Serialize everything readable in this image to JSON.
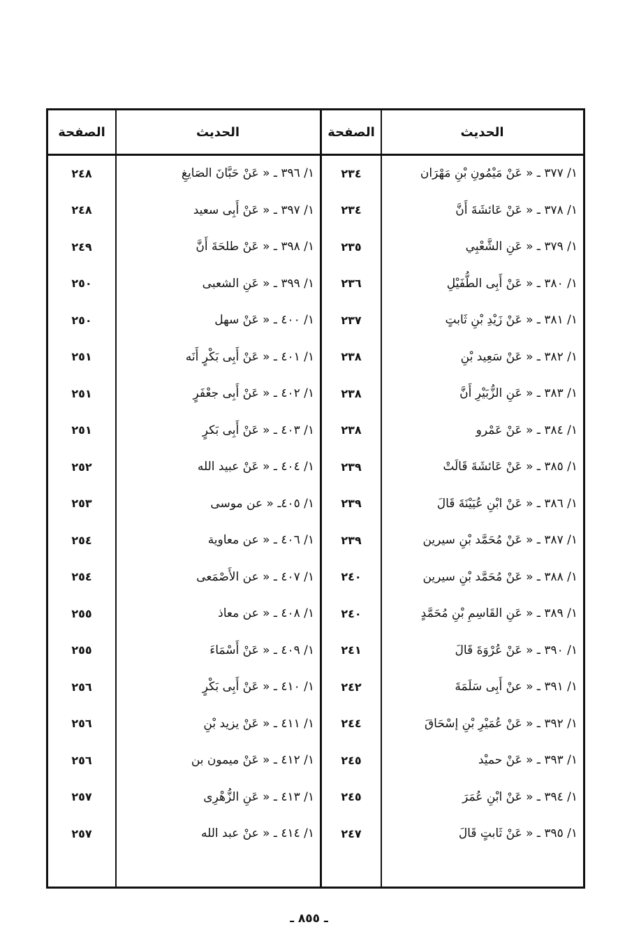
{
  "header": {
    "hadith": "الحديث",
    "page": "الصفحة"
  },
  "right_column": [
    {
      "hadith": "١/ ٣٧٧ ـ « عَنْ مَيْمُونِ بْنِ مَهْرَان",
      "page": "٢٣٤"
    },
    {
      "hadith": "١/ ٣٧٨ ـ « عَنْ عَائشَةَ أَنَّ",
      "page": "٢٣٤"
    },
    {
      "hadith": "١/ ٣٧٩ ـ « عَنِ الشَّعْبِي",
      "page": "٢٣٥"
    },
    {
      "hadith": "١/ ٣٨٠ ـ « عَنْ أَبِى الطُّفَيْلِ",
      "page": "٢٣٦"
    },
    {
      "hadith": "١/ ٣٨١ ـ « عَنْ زَيْدِ بْنِ ثَابتٍ",
      "page": "٢٣٧"
    },
    {
      "hadith": "١/ ٣٨٢ ـ « عَنْ سَعِيد بْنِ",
      "page": "٢٣٨"
    },
    {
      "hadith": "١/ ٣٨٣ ـ « عَنِ الزُّبَيْرِ أَنَّ",
      "page": "٢٣٨"
    },
    {
      "hadith": "١/ ٣٨٤ ـ « عَنْ عَمْرو",
      "page": "٢٣٨"
    },
    {
      "hadith": "١/ ٣٨٥ ـ « عَنْ عَائشَةَ قَالَتْ",
      "page": "٢٣٩"
    },
    {
      "hadith": "١/ ٣٨٦ ـ « عَنْ ابْنِ عُيَيْنَةَ قَالَ",
      "page": "٢٣٩"
    },
    {
      "hadith": "١/ ٣٨٧ ـ « عَنْ مُحَمَّد بْنِ سيرين",
      "page": "٢٣٩"
    },
    {
      "hadith": "١/ ٣٨٨ ـ « عَنْ مُحَمَّد بْنِ سيرين",
      "page": "٢٤٠"
    },
    {
      "hadith": "١/ ٣٨٩ ـ « عَنِ القَاسِمِ بْنِ مُحَمَّدٍ",
      "page": "٢٤٠"
    },
    {
      "hadith": "١/ ٣٩٠ ـ « عَنْ عُرْوَةَ قَالَ",
      "page": "٢٤١"
    },
    {
      "hadith": "١/ ٣٩١ ـ « عنْ أَبِى سَلَمَةَ",
      "page": "٢٤٢"
    },
    {
      "hadith": "١/ ٣٩٢ ـ « عَنْ عُمَيْرِ بْنِ إسْحَاقَ",
      "page": "٢٤٤"
    },
    {
      "hadith": "١/ ٣٩٣ ـ « عَنْ حميْد",
      "page": "٢٤٥"
    },
    {
      "hadith": "١/ ٣٩٤ ـ « عَنْ ابْنِ عُمَرَ",
      "page": "٢٤٥"
    },
    {
      "hadith": "١/ ٣٩٥ ـ « عَنْ ثَابتٍ قَالَ",
      "page": "٢٤٧"
    }
  ],
  "left_column": [
    {
      "hadith": "١/ ٣٩٦ ـ « عَنْ حَبَّانَ الصَايغِ",
      "page": "٢٤٨"
    },
    {
      "hadith": "١/ ٣٩٧ ـ « عَنْ أَبِى سعيد",
      "page": "٢٤٨"
    },
    {
      "hadith": "١/ ٣٩٨ ـ « عَنْ طلحَةَ أَنَّ",
      "page": "٢٤٩"
    },
    {
      "hadith": "١/ ٣٩٩ ـ « عَنِ الشعبى",
      "page": "٢٥٠"
    },
    {
      "hadith": "١/ ٤٠٠ ـ « عَنْ سهل",
      "page": "٢٥٠"
    },
    {
      "hadith": "١/ ٤٠١ ـ « عَنْ أَبِى بَكْرٍ أَنَه",
      "page": "٢٥١"
    },
    {
      "hadith": "١/ ٤٠٢ ـ « عَنْ أَبِى جعْفَرٍ",
      "page": "٢٥١"
    },
    {
      "hadith": "١/ ٤٠٣ ـ « عَنْ أَبِى بَكرٍ",
      "page": "٢٥١"
    },
    {
      "hadith": "١/ ٤٠٤ ـ « عَنْ عبيد الله",
      "page": "٢٥٢"
    },
    {
      "hadith": "١/ ٤٠٥ـ « عن موسى",
      "page": "٢٥٣"
    },
    {
      "hadith": "١/ ٤٠٦ ـ « عن معاوية",
      "page": "٢٥٤"
    },
    {
      "hadith": "١/ ٤٠٧ ـ « عن الأَصْمَعى",
      "page": "٢٥٤"
    },
    {
      "hadith": "١/ ٤٠٨ ـ « عن معاذ",
      "page": "٢٥٥"
    },
    {
      "hadith": "١/ ٤٠٩ ـ « عَنْ أَسْمَاءَ",
      "page": "٢٥٥"
    },
    {
      "hadith": "١/ ٤١٠ ـ « عَنْ أَبِى بَكْرٍ",
      "page": "٢٥٦"
    },
    {
      "hadith": "١/ ٤١١ ـ « عَنْ يزيد بْنِ",
      "page": "٢٥٦"
    },
    {
      "hadith": "١/ ٤١٢ ـ « عَنْ ميمون بن",
      "page": "٢٥٦"
    },
    {
      "hadith": "١/ ٤١٣ ـ « عَنِ الزُّهْرِى",
      "page": "٢٥٧"
    },
    {
      "hadith": "١/ ٤١٤ ـ « عنْ عبد الله",
      "page": "٢٥٧"
    }
  ],
  "footer": {
    "page_number": "ـ ٨٥٥ ـ"
  }
}
